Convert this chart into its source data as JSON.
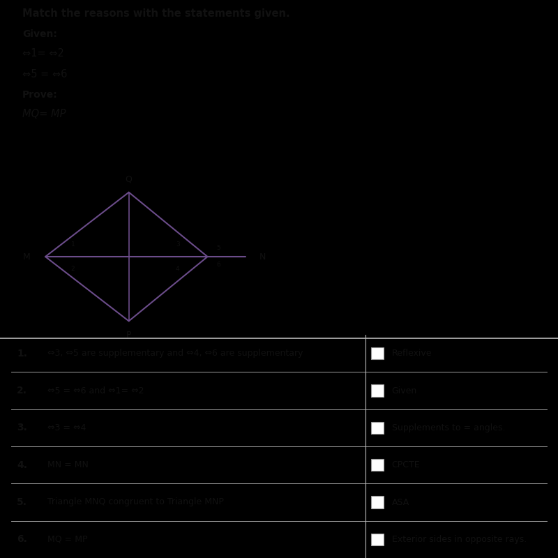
{
  "title": "Match the reasons with the statements given.",
  "given_label": "Given:",
  "given_line1": "⇔1= ⇔2",
  "given_line2": "⇔5 = ⇔6",
  "prove_label": "Prove:",
  "prove_line": "MQ= MP",
  "statements": [
    "⇔3, ⇔5 are supplementary and ⇔4, ⇔6 are supplementary",
    "⇔5 = ⇔6 and ⇔1= ⇔2",
    "⇔3 = ⇔4",
    "MN = MN",
    "Triangle MNQ congruent to Triangle MNP",
    "MQ = MP"
  ],
  "reasons": [
    "Reflexive",
    "Given",
    "Supplements to = angles.",
    "CPCTE",
    "ASA",
    "Exterior sides in opposite rays."
  ],
  "purple": "#6b4c8a",
  "bg_color": "#d8d5cc",
  "table_bg": "#f0ede8",
  "black_bar": "#000000",
  "text_color": "#111111",
  "divider_color": "#bbbbbb"
}
